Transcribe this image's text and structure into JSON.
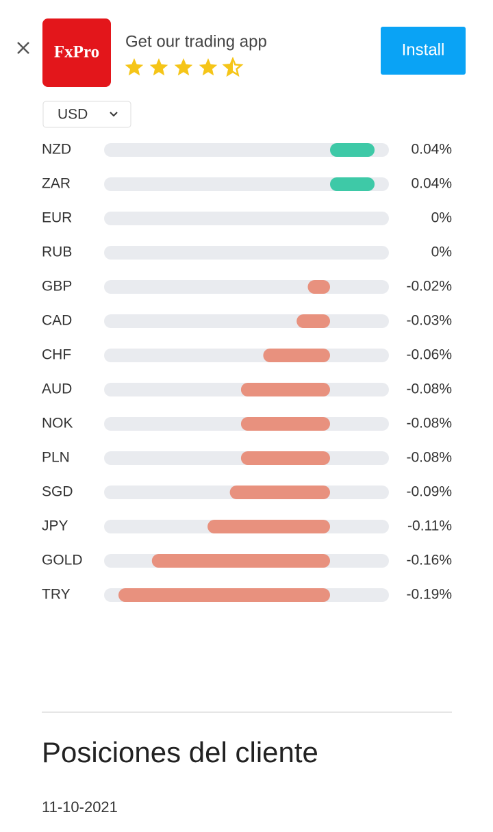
{
  "banner": {
    "logo": "FxPro",
    "text": "Get our trading app",
    "button": "Install"
  },
  "currency_selector": "USD",
  "chart_data": {
    "type": "diverging-bar",
    "categories": [
      "NZD",
      "ZAR",
      "EUR",
      "RUB",
      "GBP",
      "CAD",
      "CHF",
      "AUD",
      "NOK",
      "PLN",
      "SGD",
      "JPY",
      "GOLD",
      "TRY"
    ],
    "values": [
      0.04,
      0.04,
      0,
      0,
      -0.02,
      -0.03,
      -0.06,
      -0.08,
      -0.08,
      -0.08,
      -0.09,
      -0.11,
      -0.16,
      -0.19
    ],
    "value_labels": [
      "0.04%",
      "0.04%",
      "0%",
      "0%",
      "-0.02%",
      "-0.03%",
      "-0.06%",
      "-0.08%",
      "-0.08%",
      "-0.08%",
      "-0.09%",
      "-0.11%",
      "-0.16%",
      "-0.19%"
    ],
    "positive_color": "#3ec9a7",
    "negative_color": "#e8917e"
  },
  "section": {
    "title": "Posiciones del cliente",
    "date": "11-10-2021"
  }
}
